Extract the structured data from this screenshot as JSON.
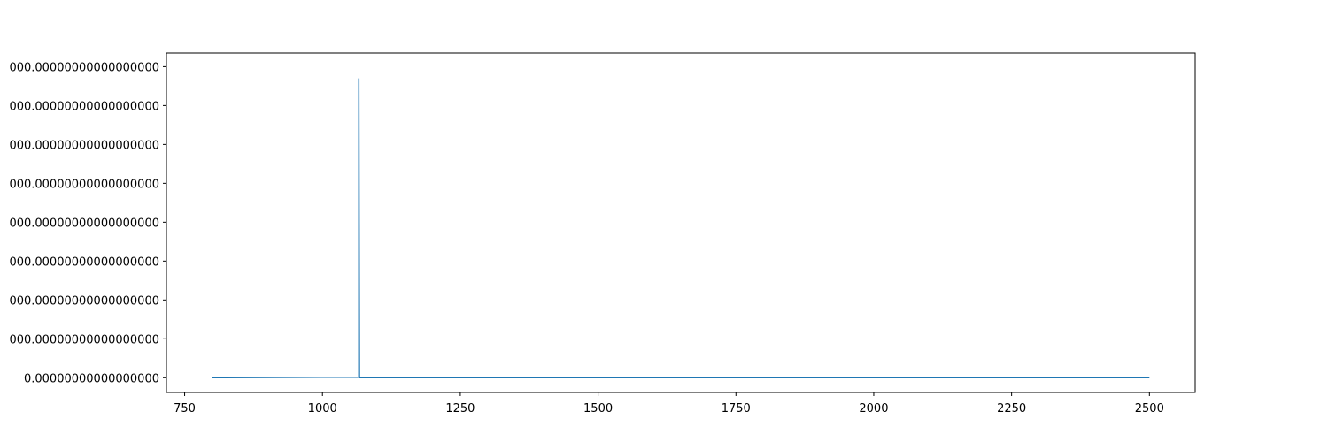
{
  "chart_data": {
    "type": "line",
    "title": "",
    "xlabel": "",
    "ylabel": "",
    "xlim": [
      717,
      2583
    ],
    "ylim": [
      -0.38,
      8.35
    ],
    "x_ticks": [
      {
        "value": 750,
        "label": "750"
      },
      {
        "value": 1000,
        "label": "1000"
      },
      {
        "value": 1250,
        "label": "1250"
      },
      {
        "value": 1500,
        "label": "1500"
      },
      {
        "value": 1750,
        "label": "1750"
      },
      {
        "value": 2000,
        "label": "2000"
      },
      {
        "value": 2250,
        "label": "2250"
      },
      {
        "value": 2500,
        "label": "2500"
      }
    ],
    "y_ticks": [
      {
        "value": 0,
        "label": "0.00000000000000000"
      },
      {
        "value": 1,
        "label": "000.00000000000000000"
      },
      {
        "value": 2,
        "label": "000.00000000000000000"
      },
      {
        "value": 3,
        "label": "000.00000000000000000"
      },
      {
        "value": 4,
        "label": "000.00000000000000000"
      },
      {
        "value": 5,
        "label": "000.00000000000000000"
      },
      {
        "value": 6,
        "label": "000.00000000000000000"
      },
      {
        "value": 7,
        "label": "000.00000000000000000"
      },
      {
        "value": 8,
        "label": "000.00000000000000000"
      }
    ],
    "grid": false,
    "legend": "none",
    "series": [
      {
        "color": "#1f77b4",
        "x": [
          800,
          1000,
          1066,
          1066,
          1067,
          1100,
          1500,
          2000,
          2500
        ],
        "y": [
          0,
          0.01,
          0.01,
          7.7,
          0,
          0,
          0,
          0,
          0
        ]
      }
    ]
  }
}
